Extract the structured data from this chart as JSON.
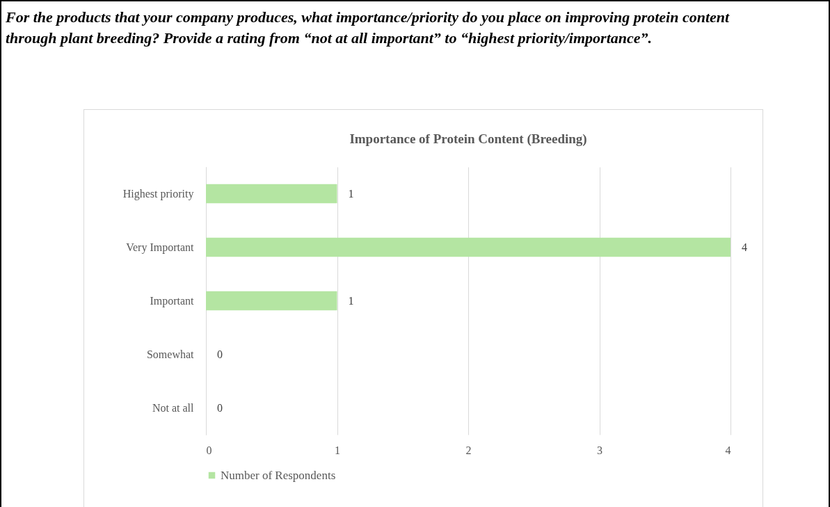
{
  "chart_data": {
    "type": "bar",
    "orientation": "horizontal",
    "title": "For the products that your company produces, what importance/priority do you place on improving protein content through plant breeding? Provide a rating from “not at all important” to “highest priority/importance”.",
    "subtitle": "Importance of Protein Content (Breeding)",
    "categories": [
      "Highest priority",
      "Very Important",
      "Important",
      "Somewhat",
      "Not  at all"
    ],
    "series": [
      {
        "name": "Number of Respondents",
        "color": "#b4e5a2",
        "values": [
          1,
          4,
          1,
          0,
          0
        ]
      }
    ],
    "xlim": [
      0,
      4
    ],
    "xticks": [
      0,
      1,
      2,
      3,
      4
    ],
    "grid": "x",
    "legend": "bottom",
    "data_labels": true
  }
}
